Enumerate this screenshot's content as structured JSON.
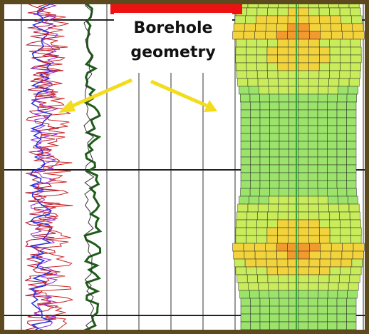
{
  "callout": {
    "lines": [
      "Borehole",
      "geometry"
    ]
  }
}
